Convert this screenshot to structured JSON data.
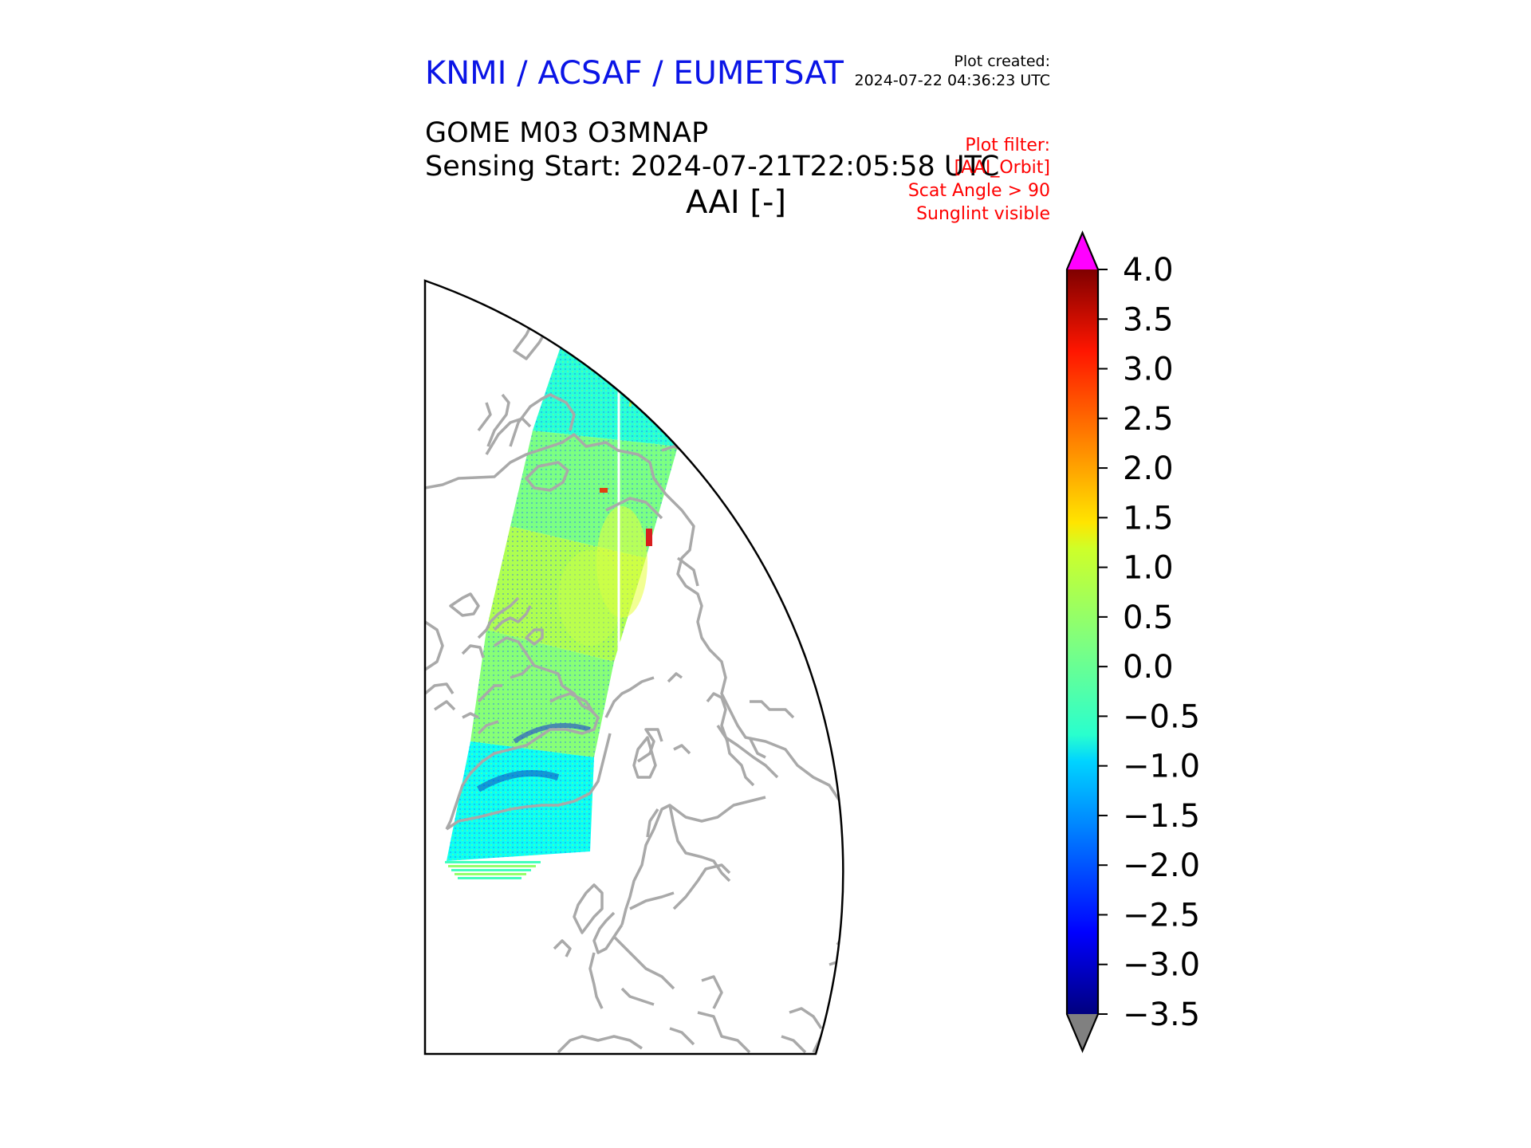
{
  "header": {
    "organizations": "KNMI / ACSAF / EUMETSAT",
    "plot_created_label": "Plot created:",
    "plot_created_time": "2024-07-22 04:36:23 UTC",
    "product": "GOME M03 O3MNAP",
    "sensing_start": "Sensing Start: 2024-07-21T22:05:58 UTC",
    "variable": "AAI [-]"
  },
  "plot_filter": [
    "Plot filter:",
    "[AAI_Orbit]",
    "Scat Angle > 90",
    "Sunglint visible"
  ],
  "colorbar": {
    "ticks": [
      "4.0",
      "3.5",
      "3.0",
      "2.5",
      "2.0",
      "1.5",
      "1.0",
      "0.5",
      "0.0",
      "−0.5",
      "−1.0",
      "−1.5",
      "−2.0",
      "−2.5",
      "−3.0",
      "−3.5"
    ],
    "min": -3.5,
    "max": 4.0,
    "colormap": "jet",
    "over_color": "#ff00ff",
    "under_color": "#808080"
  },
  "map": {
    "projection": "polar stereographic (north)",
    "coastline_color": "#a9a9a9",
    "frame_color": "#000000",
    "swath_mean_values_by_segment": [
      -0.6,
      -0.4,
      0.2,
      0.6,
      0.3,
      -0.6,
      -0.9
    ]
  }
}
